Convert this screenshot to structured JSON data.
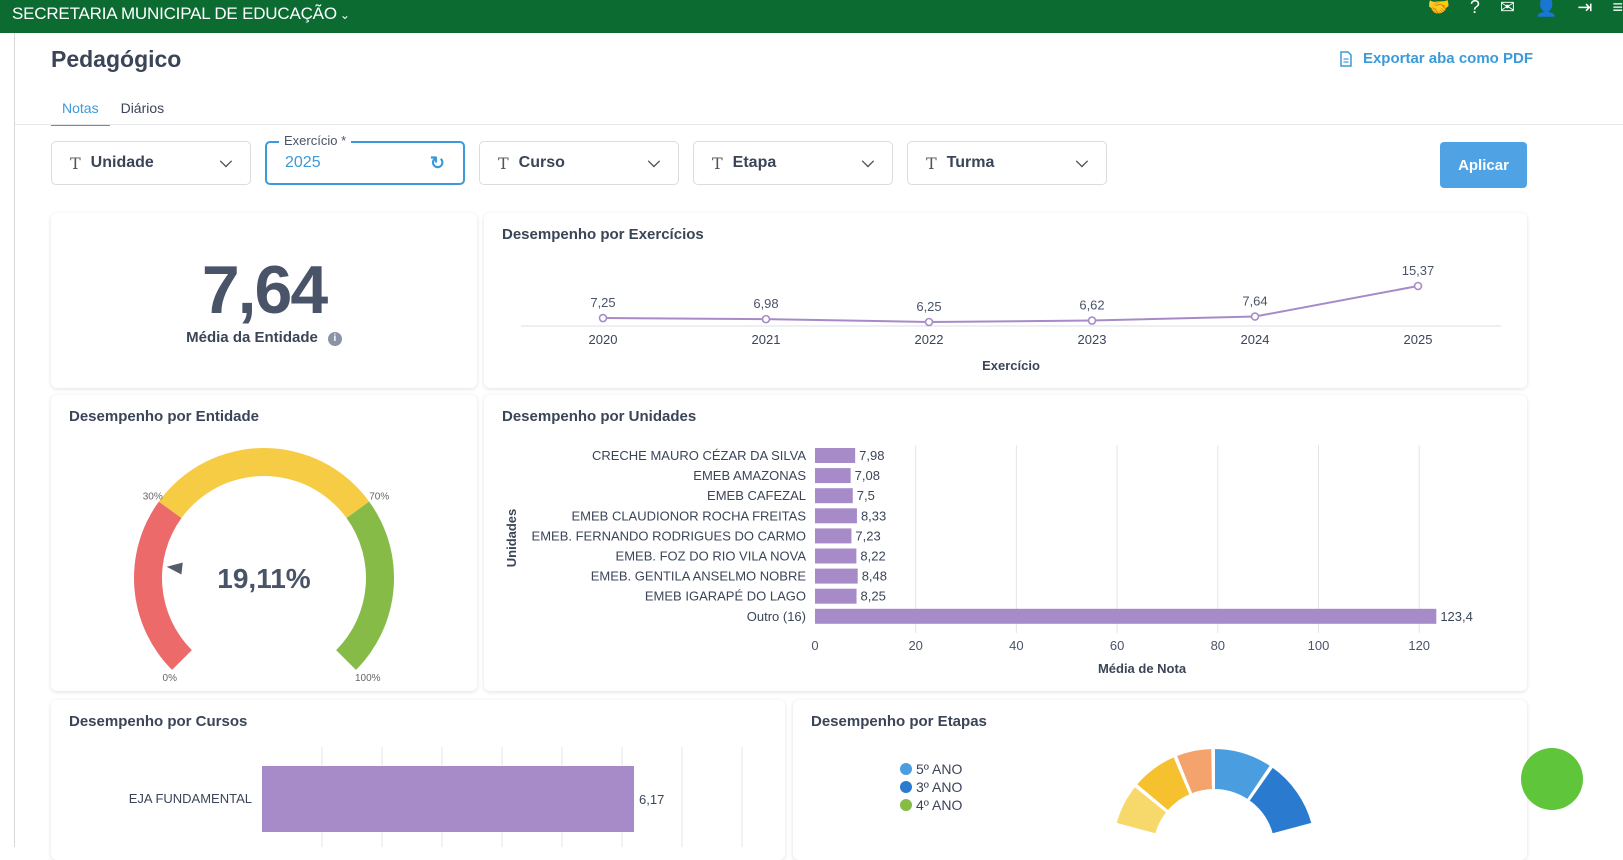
{
  "topbar": {
    "org": "SECRETARIA MUNICIPAL DE EDUCAÇÃO",
    "icons": [
      "handshake-icon",
      "help-icon",
      "mail-icon",
      "user-icon",
      "logout-icon",
      "menu-icon"
    ]
  },
  "page": {
    "title": "Pedagógico",
    "export_label": "Exportar aba como PDF"
  },
  "tabs": [
    {
      "label": "Notas",
      "active": true
    },
    {
      "label": "Diários",
      "active": false
    }
  ],
  "filters": {
    "unidade": "Unidade",
    "exercicio_label": "Exercício *",
    "exercicio_value": "2025",
    "curso": "Curso",
    "etapa": "Etapa",
    "turma": "Turma",
    "apply": "Aplicar"
  },
  "kpi": {
    "value": "7,64",
    "label": "Média da Entidade"
  },
  "colors": {
    "brand_green": "#0b6b31",
    "accent_blue": "#3b9ad9",
    "bar_purple": "#a78bc9",
    "gauge_red": "#ec6a6a",
    "gauge_yellow": "#f7cc45",
    "gauge_green": "#86bb48"
  },
  "chart_data": [
    {
      "id": "exercicios",
      "type": "line",
      "title": "Desempenho por Exercícios",
      "xlabel": "Exercício",
      "x": [
        "2020",
        "2021",
        "2022",
        "2023",
        "2024",
        "2025"
      ],
      "values": [
        7.25,
        6.98,
        6.25,
        6.62,
        7.64,
        15.37
      ],
      "labels": [
        "7,25",
        "6,98",
        "6,25",
        "6,62",
        "7,64",
        "15,37"
      ]
    },
    {
      "id": "entidade",
      "type": "gauge",
      "title": "Desempenho por Entidade",
      "value": 19.11,
      "value_label": "19,11%",
      "ticks": [
        "0%",
        "30%",
        "70%",
        "100%"
      ],
      "bands": [
        {
          "from": 0,
          "to": 30,
          "color": "#ec6a6a"
        },
        {
          "from": 30,
          "to": 70,
          "color": "#f7cc45"
        },
        {
          "from": 70,
          "to": 100,
          "color": "#86bb48"
        }
      ]
    },
    {
      "id": "unidades",
      "type": "bar",
      "orientation": "horizontal",
      "title": "Desempenho por Unidades",
      "ylabel": "Unidades",
      "xlabel": "Média de Nota",
      "categories": [
        "CRECHE MAURO CÉZAR DA SILVA",
        "EMEB AMAZONAS",
        "EMEB CAFEZAL",
        "EMEB CLAUDIONOR ROCHA FREITAS",
        "EMEB. FERNANDO RODRIGUES DO CARMO",
        "EMEB. FOZ DO RIO VILA NOVA",
        "EMEB. GENTILA ANSELMO NOBRE",
        "EMEB IGARAPÉ DO LAGO",
        "Outro (16)"
      ],
      "values": [
        7.98,
        7.08,
        7.5,
        8.33,
        7.23,
        8.22,
        8.48,
        8.25,
        123.4
      ],
      "labels": [
        "7,98",
        "7,08",
        "7,5",
        "8,33",
        "7,23",
        "8,22",
        "8,48",
        "8,25",
        "123,4"
      ],
      "xticks": [
        0,
        20,
        40,
        60,
        80,
        100,
        120
      ],
      "xlim": [
        0,
        136
      ]
    },
    {
      "id": "cursos",
      "type": "bar",
      "orientation": "horizontal",
      "title": "Desempenho por Cursos",
      "categories": [
        "EJA FUNDAMENTAL"
      ],
      "values": [
        6.17
      ],
      "labels": [
        "6,17"
      ],
      "xlim": [
        0,
        8.1
      ]
    },
    {
      "id": "etapas",
      "type": "pie",
      "title": "Desempenho por Etapas",
      "legend": [
        "5º ANO",
        "3º ANO",
        "4º ANO"
      ],
      "legend_colors": [
        "#4a9ee0",
        "#2a7bd0",
        "#86bb48"
      ]
    }
  ]
}
